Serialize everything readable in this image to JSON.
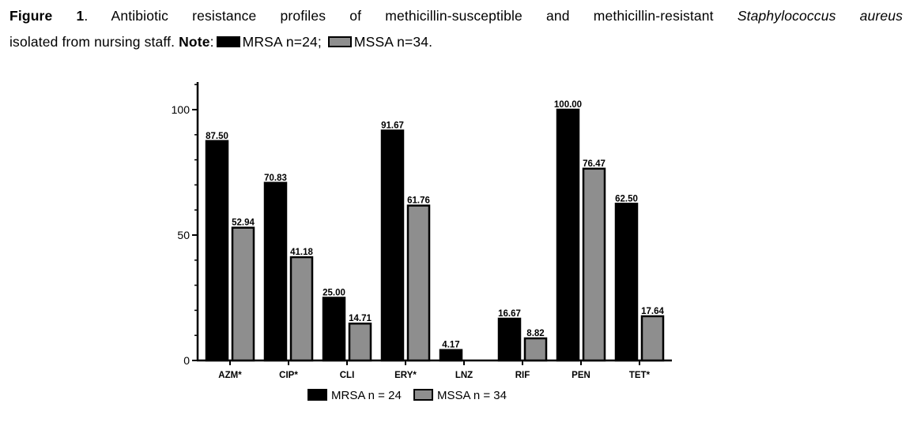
{
  "caption": {
    "label": "Figure 1",
    "text": ". Antibiotic resistance profiles of methicillin-susceptible and methicillin-resistant ",
    "species": "Staphylococcus aureus",
    "line2": "isolated from nursing staff. ",
    "note_label": "Note",
    "note_mrsa": "MRSA n=24;",
    "note_mssa": "MSSA n=34."
  },
  "colors": {
    "mrsa": "#000000",
    "mssa": "#8e8e8e"
  },
  "chart_data": {
    "type": "bar",
    "categories": [
      "AZM*",
      "CIP*",
      "CLI",
      "ERY*",
      "LNZ",
      "RIF",
      "PEN",
      "TET*"
    ],
    "series": [
      {
        "name": "MRSA n = 24",
        "values": [
          87.5,
          70.83,
          25.0,
          91.67,
          4.17,
          16.67,
          100.0,
          62.5
        ],
        "labels": [
          "87.50",
          "70.83",
          "25.00",
          "91.67",
          "4.17",
          "16.67",
          "100.00",
          "62.50"
        ]
      },
      {
        "name": "MSSA n = 34",
        "values": [
          52.94,
          41.18,
          14.71,
          61.76,
          0,
          8.82,
          76.47,
          17.64
        ],
        "labels": [
          "52.94",
          "41.18",
          "14.71",
          "61.76",
          "",
          "8.82",
          "76.47",
          "17.64"
        ]
      }
    ],
    "yticks": [
      0,
      50,
      100
    ],
    "ylim": [
      0,
      111
    ],
    "legend": "bottom",
    "grid": false
  }
}
